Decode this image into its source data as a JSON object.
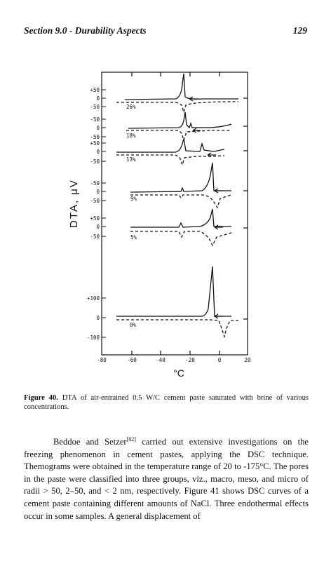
{
  "header": {
    "section": "Section 9.0 - Durability Aspects",
    "page_number": "129"
  },
  "figure": {
    "ylabel": "DTA, μV",
    "xlabel": "°C",
    "x_ticks": [
      "-80",
      "-60",
      "-40",
      "-20",
      "0",
      "20"
    ],
    "panels": [
      {
        "label": "26%",
        "ticks": [
          "+50",
          "0",
          "-50"
        ]
      },
      {
        "label": "18%",
        "ticks": [
          "-50",
          "0",
          "-50"
        ]
      },
      {
        "label": "13%",
        "ticks": [
          "+50",
          "0",
          "-50"
        ]
      },
      {
        "label": "9%",
        "ticks": [
          "-50",
          "0",
          "-50"
        ]
      },
      {
        "label": "5%",
        "ticks": [
          "+50",
          "0",
          "-50"
        ]
      },
      {
        "label": "0%",
        "ticks": [
          "+100",
          "0",
          "-100"
        ]
      }
    ]
  },
  "caption": {
    "label": "Figure 40.",
    "text": " DTA of air-entrained 0.5 W/C cement paste saturated with brine of various concentrations."
  },
  "paragraph": {
    "before_ref": "Beddoe and Setzer",
    "ref": "[82]",
    "after_ref": " carried out extensive investigations on the freezing phenomenon in cement pastes, applying the DSC technique. Themograms were obtained in the temperature range of 20 to -175°C. The pores in the paste were classified into three groups, viz., macro, meso, and micro of radii > 50, 2–50, and < 2 nm, respectively. Figure 41 shows DSC curves of a cement paste containing different amounts of NaCl. Three endothermal effects occur in some samples. A general displacement of"
  }
}
